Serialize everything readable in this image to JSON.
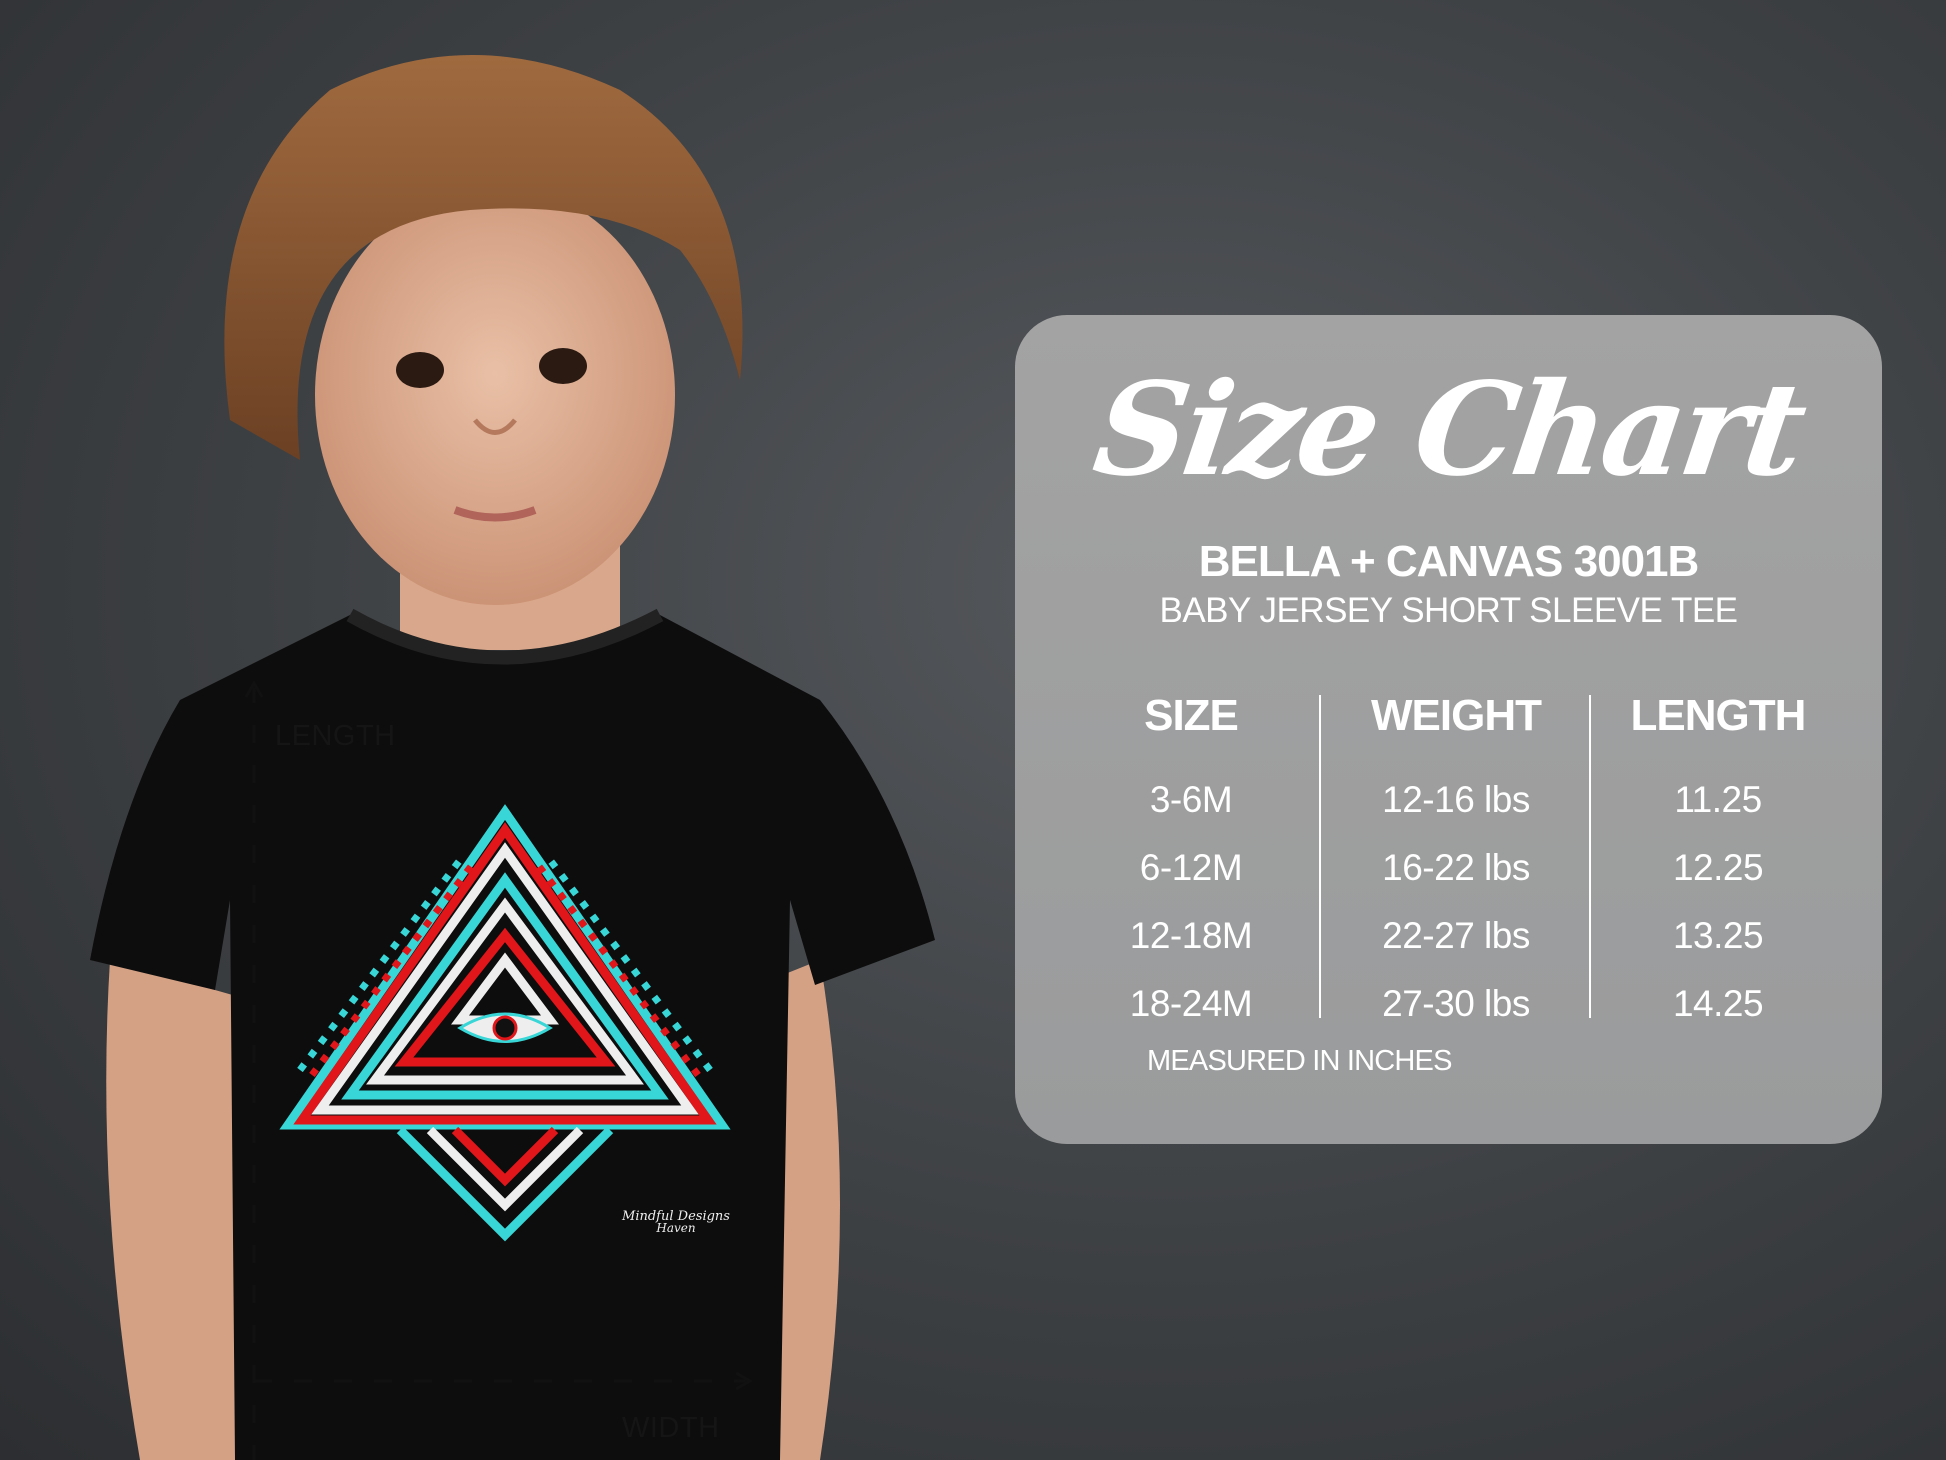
{
  "photo": {
    "measure_labels": {
      "length": "LENGTH",
      "width": "WIDTH"
    },
    "shirt_logo": {
      "line1": "Mindful Designs",
      "line2": "Haven"
    }
  },
  "size_chart": {
    "title": "Size Chart",
    "brand": "BELLA + CANVAS 3001B",
    "product": "BABY JERSEY SHORT SLEEVE TEE",
    "columns": [
      "SIZE",
      "WEIGHT",
      "LENGTH"
    ],
    "rows": [
      [
        "3-6M",
        "12-16 lbs",
        "11.25"
      ],
      [
        "6-12M",
        "16-22 lbs",
        "12.25"
      ],
      [
        "12-18M",
        "22-27 lbs",
        "13.25"
      ],
      [
        "18-24M",
        "27-30 lbs",
        "14.25"
      ]
    ],
    "note": "MEASURED IN INCHES"
  },
  "colors": {
    "panel": "#9e9f a0",
    "background": "#3d4043",
    "shirt": "#0c0c0c",
    "accent_cyan": "#38d6d6",
    "accent_red": "#e0161b"
  }
}
